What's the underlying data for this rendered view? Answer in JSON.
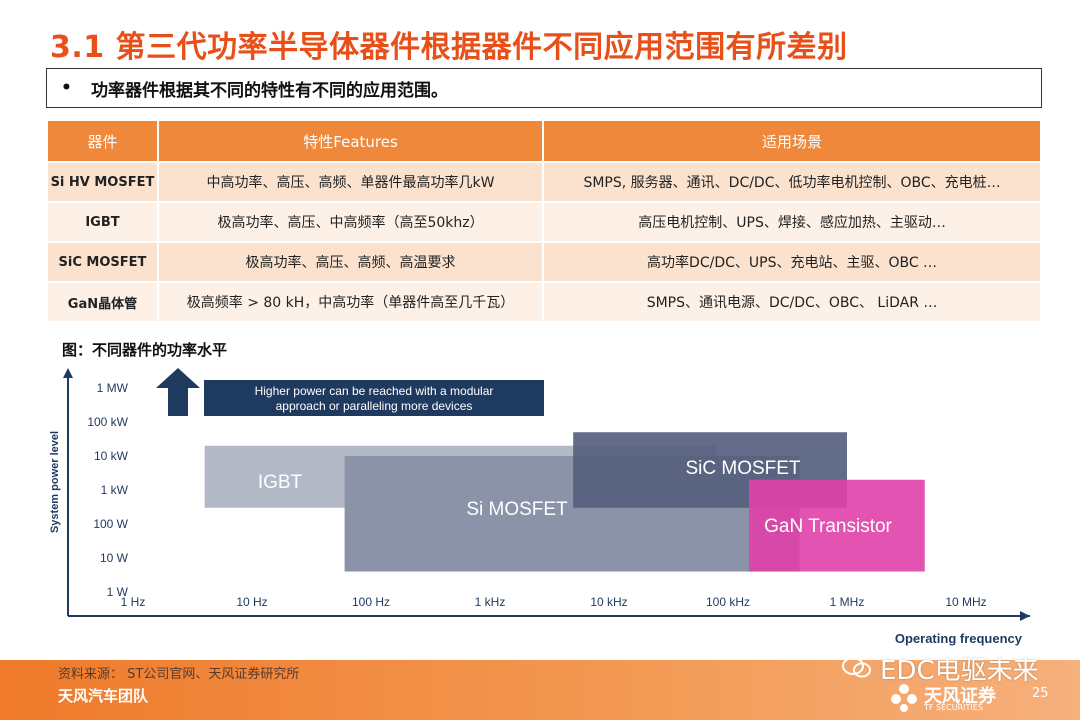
{
  "title": "3.1 第三代功率半导体器件根据器件不同应用范围有所差别",
  "bullet": "功率器件根据其不同的特性有不同的应用范围。",
  "table": {
    "headers": [
      "器件",
      "特性Features",
      "适用场景"
    ],
    "rows": [
      [
        "Si HV MOSFET",
        "中高功率、高压、高频、单器件最高功率几kW",
        "SMPS, 服务器、通讯、DC/DC、低功率电机控制、OBC、充电桩…"
      ],
      [
        "IGBT",
        "极高功率、高压、中高频率（高至50khz）",
        "高压电机控制、UPS、焊接、感应加热、主驱动…"
      ],
      [
        "SiC MOSFET",
        "极高功率、高压、高频、高温要求",
        "高功率DC/DC、UPS、充电站、主驱、OBC …"
      ],
      [
        "GaN晶体管",
        "极高频率 > 80 kH，中高功率（单器件高至几千瓦）",
        "SMPS、通讯电源、DC/DC、OBC、 LiDAR …"
      ]
    ]
  },
  "figure_caption": "图：不同器件的功率水平",
  "chart_data": {
    "type": "area",
    "xlabel": "Operating frequency",
    "ylabel": "System power level",
    "x_ticks": [
      "1 Hz",
      "10 Hz",
      "100 Hz",
      "1 kHz",
      "10 kHz",
      "100 kHz",
      "1 MHz",
      "10 MHz"
    ],
    "y_ticks": [
      "1 W",
      "10 W",
      "100 W",
      "1 kW",
      "10 kW",
      "100 kW",
      "1 MW"
    ],
    "x_scale": "log",
    "y_scale": "log",
    "series": [
      {
        "name": "IGBT",
        "x_range_hz": [
          4,
          80000
        ],
        "y_range_w": [
          300,
          20000
        ],
        "color": "#b3b8c6"
      },
      {
        "name": "Si MOSFET",
        "x_range_hz": [
          60,
          400000
        ],
        "y_range_w": [
          4,
          10000
        ],
        "color": "#8a93a8"
      },
      {
        "name": "SiC MOSFET",
        "x_range_hz": [
          5000,
          1000000
        ],
        "y_range_w": [
          300,
          50000
        ],
        "color": "#56607e"
      },
      {
        "name": "GaN Transistor",
        "x_range_hz": [
          150000,
          4500000
        ],
        "y_range_w": [
          4,
          2000
        ],
        "color": "#e040a8"
      }
    ],
    "annotation": "Higher power can be reached with a modular approach or paralleling more devices"
  },
  "footer": {
    "source": "资料来源： ST公司官网、天风证券研究所",
    "team": "天风汽车团队",
    "watermark": "EDC电驱未来",
    "brand": "天风证券",
    "brand_sub": "TF SECURITIES",
    "page": "25"
  },
  "colors": {
    "title": "#e8501a",
    "header": "#f0883c",
    "row_dark": "#fbe2cf",
    "row_light": "#fdf0e6",
    "annotation_box": "#1f3a5f"
  }
}
